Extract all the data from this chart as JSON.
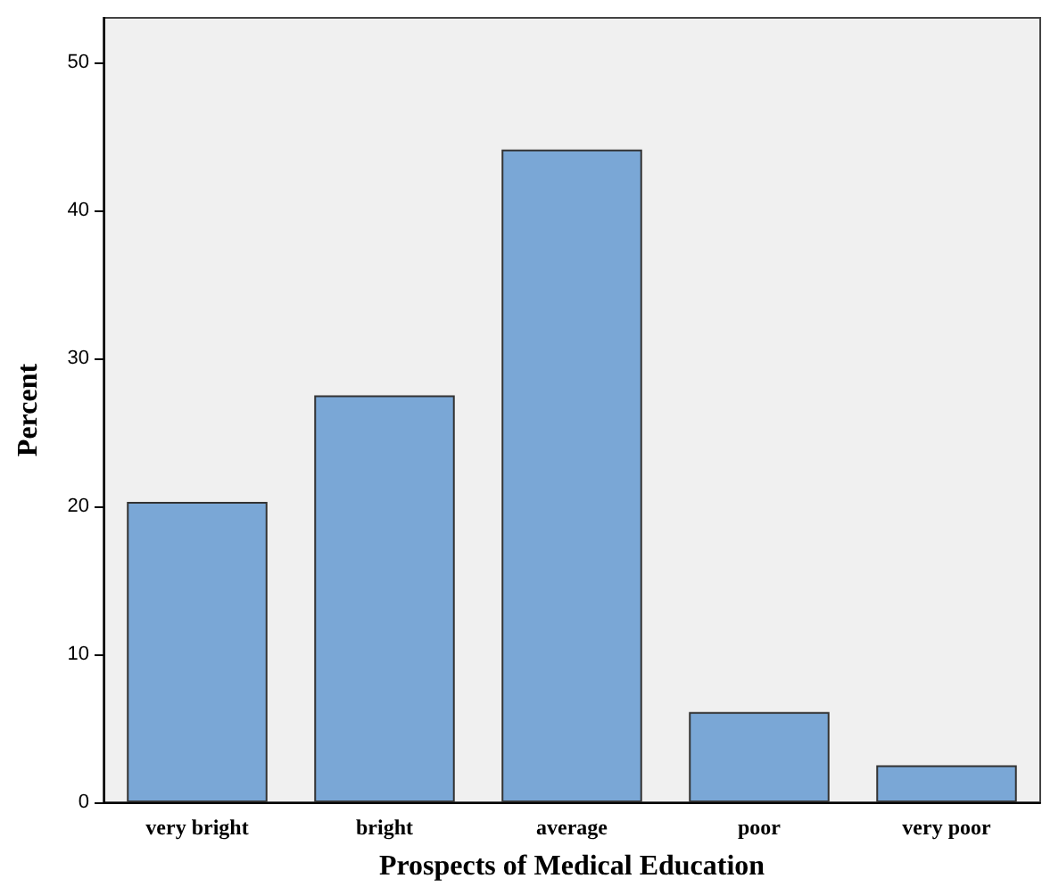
{
  "chart_data": {
    "type": "bar",
    "xlabel": "Prospects of Medical Education",
    "ylabel": "Percent",
    "categories": [
      "very bright",
      "bright",
      "average",
      "poor",
      "very poor"
    ],
    "values": [
      20.3,
      27.5,
      44.1,
      6.1,
      2.5
    ],
    "color": "#7aa7d6",
    "ylim": [
      0,
      53
    ],
    "yticks": [
      0,
      10,
      20,
      30,
      40,
      50
    ],
    "grid": false
  }
}
